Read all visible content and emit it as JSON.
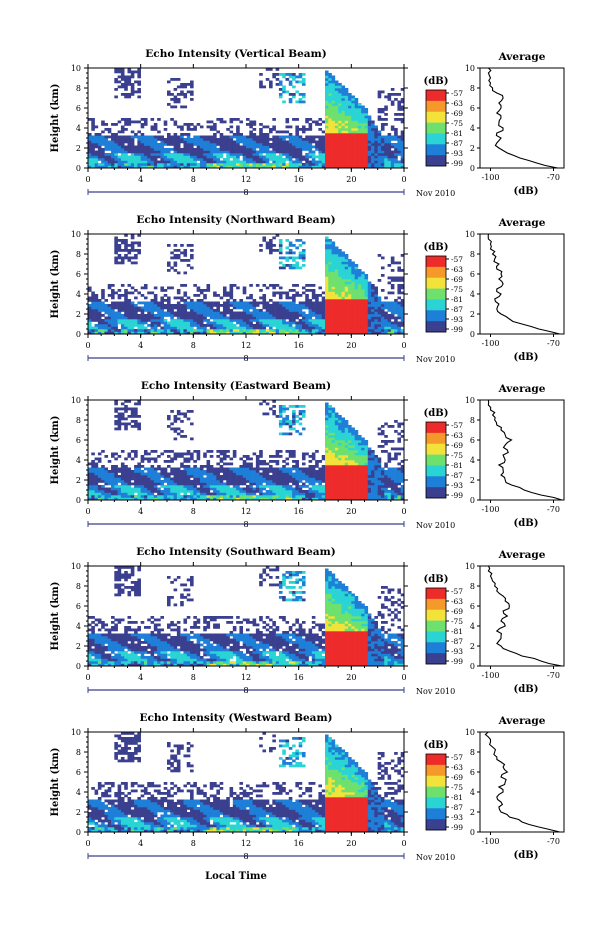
{
  "figure": {
    "date_label": "Nov 2010",
    "xlabel": "Local Time",
    "date_marker": "8",
    "colorbar_unit": "(dB)",
    "colorbar_ticks": [
      "-57",
      "-63",
      "-69",
      "-75",
      "-81",
      "-87",
      "-93",
      "-99"
    ],
    "colors": {
      "deep": "#3a3f8f",
      "mid": "#1e7fd8",
      "cyan": "#2ad4d4",
      "green": "#6ee06e",
      "yellow": "#f2e23a",
      "orange": "#f59a2a",
      "red": "#ee2b2b"
    }
  },
  "chart_data": [
    {
      "type": "heatmap",
      "title": "Echo Intensity (Vertical Beam)",
      "ylabel": "Height (km)",
      "xlabel": "",
      "x_ticks": [
        "0",
        "4",
        "8",
        "12",
        "16",
        "20",
        "0"
      ],
      "xlim": [
        0,
        24
      ],
      "y_ticks": [
        "0",
        "2",
        "4",
        "6",
        "8",
        "10"
      ],
      "ylim": [
        0,
        10
      ],
      "value_range_db": [
        -99,
        -57
      ],
      "profile": {
        "title": "Average",
        "xlabel": "(dB)",
        "x_ticks": [
          "-100",
          "-70"
        ],
        "xlim": [
          -105,
          -65
        ],
        "y_ticks": [
          "0",
          "2",
          "4",
          "6",
          "8",
          "10"
        ],
        "ylim": [
          0,
          10
        ],
        "height_km": [
          0,
          0.5,
          1,
          1.5,
          2,
          2.5,
          3,
          3.5,
          4,
          4.5,
          5,
          5.5,
          6,
          6.5,
          7,
          7.5,
          8,
          8.5,
          9,
          9.5,
          10
        ],
        "db": [
          -68,
          -78,
          -86,
          -92,
          -96,
          -97,
          -95,
          -97,
          -94,
          -96,
          -95,
          -97,
          -95,
          -96,
          -94,
          -97,
          -99,
          -100,
          -100,
          -101,
          -101
        ]
      }
    },
    {
      "type": "heatmap",
      "title": "Echo Intensity (Northward Beam)",
      "ylabel": "Height (km)",
      "xlabel": "",
      "x_ticks": [
        "0",
        "4",
        "8",
        "12",
        "16",
        "20",
        "0"
      ],
      "xlim": [
        0,
        24
      ],
      "y_ticks": [
        "0",
        "2",
        "4",
        "6",
        "8",
        "10"
      ],
      "ylim": [
        0,
        10
      ],
      "value_range_db": [
        -99,
        -57
      ],
      "profile": {
        "title": "Average",
        "xlabel": "(dB)",
        "x_ticks": [
          "-100",
          "-70"
        ],
        "xlim": [
          -105,
          -65
        ],
        "y_ticks": [
          "0",
          "2",
          "4",
          "6",
          "8",
          "10"
        ],
        "ylim": [
          0,
          10
        ],
        "height_km": [
          0,
          0.5,
          1,
          1.5,
          2,
          2.5,
          3,
          3.5,
          4,
          4.5,
          5,
          5.5,
          6,
          6.5,
          7,
          7.5,
          8,
          8.5,
          9,
          9.5,
          10
        ],
        "db": [
          -67,
          -77,
          -85,
          -91,
          -95,
          -97,
          -96,
          -98,
          -95,
          -97,
          -94,
          -96,
          -95,
          -97,
          -96,
          -98,
          -99,
          -100,
          -100,
          -101,
          -101
        ]
      }
    },
    {
      "type": "heatmap",
      "title": "Echo Intensity (Eastward Beam)",
      "ylabel": "Height (km)",
      "xlabel": "",
      "x_ticks": [
        "0",
        "4",
        "8",
        "12",
        "16",
        "20",
        "0"
      ],
      "xlim": [
        0,
        24
      ],
      "y_ticks": [
        "0",
        "2",
        "4",
        "6",
        "8",
        "10"
      ],
      "ylim": [
        0,
        10
      ],
      "value_range_db": [
        -99,
        -57
      ],
      "profile": {
        "title": "Average",
        "xlabel": "(dB)",
        "x_ticks": [
          "-100",
          "-70"
        ],
        "xlim": [
          -105,
          -65
        ],
        "y_ticks": [
          "0",
          "2",
          "4",
          "6",
          "8",
          "10"
        ],
        "ylim": [
          0,
          10
        ],
        "height_km": [
          0,
          0.5,
          1,
          1.5,
          2,
          2.5,
          3,
          3.5,
          4,
          4.5,
          5,
          5.5,
          6,
          6.5,
          7,
          7.5,
          8,
          8.5,
          9,
          9.5,
          10
        ],
        "db": [
          -66,
          -76,
          -84,
          -90,
          -93,
          -95,
          -94,
          -96,
          -93,
          -94,
          -92,
          -93,
          -90,
          -93,
          -95,
          -97,
          -98,
          -99,
          -100,
          -101,
          -101
        ]
      }
    },
    {
      "type": "heatmap",
      "title": "Echo Intensity (Southward Beam)",
      "ylabel": "Height (km)",
      "xlabel": "",
      "x_ticks": [
        "0",
        "4",
        "8",
        "12",
        "16",
        "20",
        "0"
      ],
      "xlim": [
        0,
        24
      ],
      "y_ticks": [
        "0",
        "2",
        "4",
        "6",
        "8",
        "10"
      ],
      "ylim": [
        0,
        10
      ],
      "value_range_db": [
        -99,
        -57
      ],
      "profile": {
        "title": "Average",
        "xlabel": "(dB)",
        "x_ticks": [
          "-100",
          "-70"
        ],
        "xlim": [
          -105,
          -65
        ],
        "y_ticks": [
          "0",
          "2",
          "4",
          "6",
          "8",
          "10"
        ],
        "ylim": [
          0,
          10
        ],
        "height_km": [
          0,
          0.5,
          1,
          1.5,
          2,
          2.5,
          3,
          3.5,
          4,
          4.5,
          5,
          5.5,
          6,
          6.5,
          7,
          7.5,
          8,
          8.5,
          9,
          9.5,
          10
        ],
        "db": [
          -66,
          -76,
          -85,
          -91,
          -95,
          -96,
          -95,
          -97,
          -93,
          -95,
          -92,
          -94,
          -91,
          -93,
          -94,
          -97,
          -98,
          -99,
          -100,
          -101,
          -101
        ]
      }
    },
    {
      "type": "heatmap",
      "title": "Echo Intensity (Westward Beam)",
      "ylabel": "Height (km)",
      "xlabel": "Local Time",
      "x_ticks": [
        "0",
        "4",
        "8",
        "12",
        "16",
        "20",
        "0"
      ],
      "xlim": [
        0,
        24
      ],
      "y_ticks": [
        "0",
        "2",
        "4",
        "6",
        "8",
        "10"
      ],
      "ylim": [
        0,
        10
      ],
      "value_range_db": [
        -99,
        -57
      ],
      "profile": {
        "title": "Average",
        "xlabel": "(dB)",
        "x_ticks": [
          "-100",
          "-70"
        ],
        "xlim": [
          -105,
          -65
        ],
        "y_ticks": [
          "0",
          "2",
          "4",
          "6",
          "8",
          "10"
        ],
        "ylim": [
          0,
          10
        ],
        "height_km": [
          0,
          0.5,
          1,
          1.5,
          2,
          2.5,
          3,
          3.5,
          4,
          4.5,
          5,
          5.5,
          6,
          6.5,
          7,
          7.5,
          8,
          8.5,
          9,
          9.5,
          10
        ],
        "db": [
          -67,
          -77,
          -85,
          -91,
          -95,
          -96,
          -95,
          -97,
          -94,
          -96,
          -93,
          -95,
          -92,
          -94,
          -95,
          -97,
          -98,
          -99,
          -100,
          -101,
          -101
        ]
      }
    }
  ]
}
